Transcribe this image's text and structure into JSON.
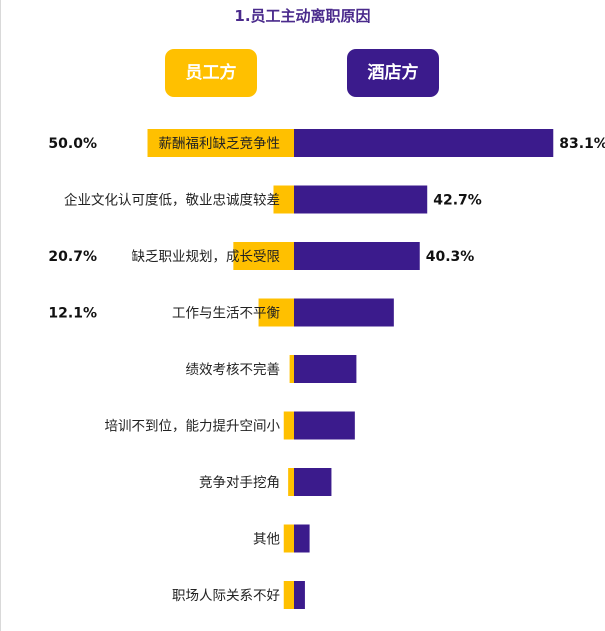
{
  "chart_data": {
    "type": "bar",
    "title": "1.员工主动离职原因",
    "legend": {
      "left_label": "员工方",
      "right_label": "酒店方"
    },
    "categories": [
      "薪酬福利缺乏竞争性",
      "企业文化认可度低，敬业忠诚度较差",
      "缺乏职业规划，成长受限",
      "工作与生活不平衡",
      "绩效考核不完善",
      "培训不到位，能力提升空间小",
      "竞争对手挖角",
      "其他",
      "职场人际关系不好"
    ],
    "series": [
      {
        "name": "员工方",
        "color": "#FFC000",
        "values": [
          50.0,
          7.0,
          20.7,
          12.1,
          1.5,
          3.5,
          2.0,
          3.5,
          3.5
        ],
        "labels": [
          "50.0%",
          "",
          "20.7%",
          "12.1%",
          "",
          "",
          "",
          "",
          ""
        ]
      },
      {
        "name": "酒店方",
        "color": "#3B1B8C",
        "values": [
          83.1,
          42.7,
          40.3,
          32.0,
          20.0,
          19.5,
          12.0,
          5.0,
          3.5
        ],
        "labels": [
          "83.1%",
          "42.7%",
          "40.3%",
          "",
          "",
          "",
          "",
          "",
          ""
        ]
      }
    ],
    "xlim": [
      0,
      100
    ]
  }
}
